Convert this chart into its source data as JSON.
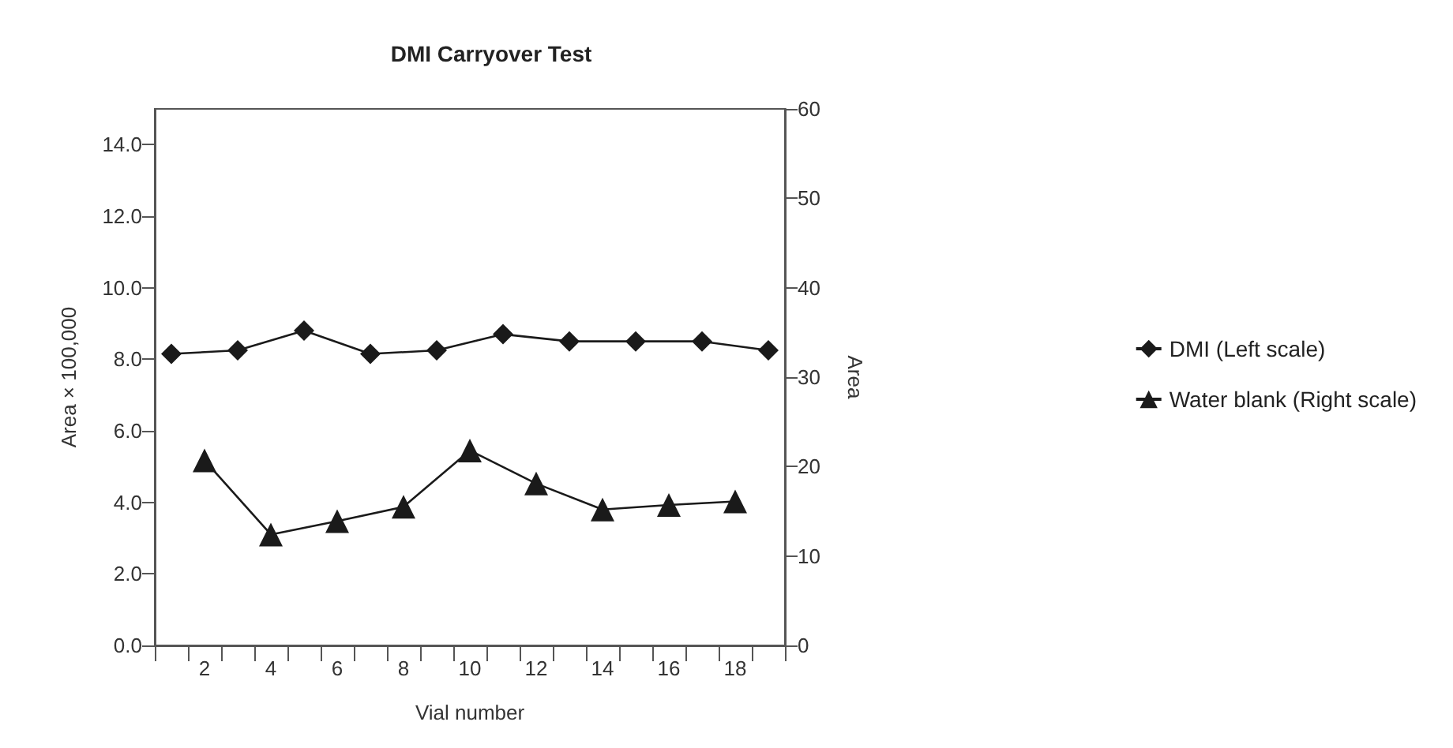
{
  "chart_data": {
    "type": "line",
    "title": "DMI Carryover Test",
    "xlabel": "Vial number",
    "ylabel": "Area × 100,000",
    "y2label": "Area",
    "categories": [
      null,
      "2",
      null,
      "4",
      null,
      "6",
      null,
      "8",
      null,
      "10",
      null,
      "12",
      null,
      "14",
      null,
      "16",
      null,
      "18",
      null
    ],
    "series": [
      {
        "name": "DMI (Left scale)",
        "color": "#1a1a1a",
        "marker": "diamond",
        "values": [
          8.15,
          null,
          8.25,
          null,
          8.8,
          null,
          8.15,
          null,
          8.25,
          null,
          8.7,
          null,
          8.5,
          null,
          8.5,
          null,
          8.5,
          null,
          8.25
        ]
      },
      {
        "name": "Water blank (Right scale)",
        "color": "#1a1a1a",
        "marker": "triangle",
        "axis": "y2",
        "values": [
          null,
          20.7,
          null,
          12.4,
          null,
          13.9,
          null,
          15.5,
          null,
          21.8,
          null,
          18.1,
          null,
          15.2,
          null,
          15.7,
          null,
          16.1,
          null
        ]
      }
    ],
    "ylim": [
      0,
      15
    ],
    "yticks": [
      {
        "value": 0,
        "label": "0.0"
      },
      {
        "value": 2,
        "label": "2.0"
      },
      {
        "value": 4,
        "label": "4.0"
      },
      {
        "value": 6,
        "label": "6.0"
      },
      {
        "value": 8,
        "label": "8.0"
      },
      {
        "value": 10,
        "label": "10.0"
      },
      {
        "value": 12,
        "label": "12.0"
      },
      {
        "value": 14,
        "label": "14.0"
      }
    ],
    "y2lim": [
      0,
      60
    ],
    "y2ticks": [
      0,
      10,
      20,
      30,
      40,
      50,
      60
    ],
    "legend": "right",
    "grid": false
  }
}
